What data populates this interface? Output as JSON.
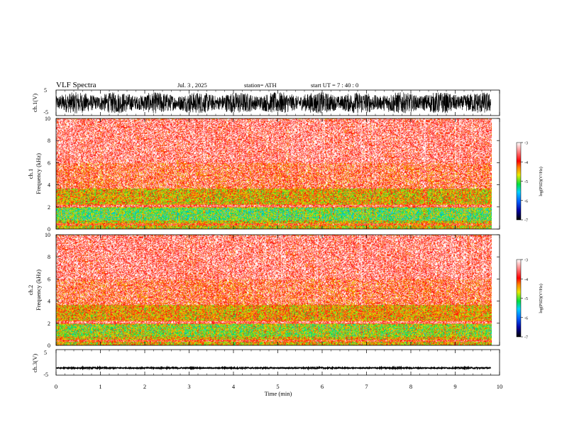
{
  "header": {
    "title": "VLF  Spectra",
    "date": "Jul.  3  , 2025",
    "station": "station= ATH",
    "start": "start  UT  =   7  : 40 : 0"
  },
  "chart_data": [
    {
      "type": "line",
      "panel": "ch1-waveform",
      "ylabel": "ch.1(V)",
      "ylim": [
        -5,
        5
      ],
      "yticks": [
        "5",
        "-5"
      ],
      "x_range_min": [
        0,
        9.8
      ],
      "note_values": "dense noise waveform, amplitude about ±4 V"
    },
    {
      "type": "heatmap",
      "panel": "ch1-spectrogram",
      "ylabel": "ch.1\nFrequency  (kHz)",
      "ylim": [
        0,
        10
      ],
      "yticks": [
        "0",
        "2",
        "4",
        "6",
        "8",
        "10"
      ],
      "x_range_min": [
        0,
        9.8
      ],
      "colorbar": {
        "label": "log(PSD)(V²/Hz)",
        "ticks": [
          "-3",
          "-4",
          "-5",
          "-6",
          "-7"
        ],
        "range": [
          -7,
          -3
        ]
      },
      "bands_khz": [
        {
          "range": [
            0,
            0.8
          ],
          "level": -4.6
        },
        {
          "range": [
            0.8,
            2.0
          ],
          "level": -5.0
        },
        {
          "range": [
            2.0,
            2.3
          ],
          "level": -4.2
        },
        {
          "range": [
            2.3,
            3.7
          ],
          "level": -4.5
        },
        {
          "range": [
            3.7,
            6.0
          ],
          "level": -3.9
        },
        {
          "range": [
            6.0,
            10.0
          ],
          "level": -3.6
        }
      ]
    },
    {
      "type": "heatmap",
      "panel": "ch2-spectrogram",
      "ylabel": "ch.2\nFrequency  (kHz)",
      "ylim": [
        0,
        10
      ],
      "yticks": [
        "0",
        "2",
        "4",
        "6",
        "8",
        "10"
      ],
      "x_range_min": [
        0,
        9.8
      ],
      "colorbar": {
        "label": "log(PSD)(V²/Hz)",
        "ticks": [
          "-3",
          "-4",
          "-5",
          "-6",
          "-7"
        ],
        "range": [
          -7,
          -3
        ]
      },
      "bands_khz": [
        {
          "range": [
            0,
            0.8
          ],
          "level": -4.5
        },
        {
          "range": [
            0.8,
            2.0
          ],
          "level": -4.8
        },
        {
          "range": [
            2.0,
            2.3
          ],
          "level": -4.1
        },
        {
          "range": [
            2.3,
            3.7
          ],
          "level": -4.4
        },
        {
          "range": [
            3.7,
            6.0
          ],
          "level": -3.9
        },
        {
          "range": [
            6.0,
            10.0
          ],
          "level": -3.6
        }
      ]
    },
    {
      "type": "line",
      "panel": "ch3-waveform",
      "ylabel": "ch.3(V)",
      "ylim": [
        -5,
        5
      ],
      "yticks": [
        "5",
        "-5"
      ],
      "x_range_min": [
        0,
        9.8
      ],
      "note_values": "nearly flat trace around -2 V"
    }
  ],
  "xaxis": {
    "label": "Time  (min)",
    "ticks": [
      "0",
      "1",
      "2",
      "3",
      "4",
      "5",
      "6",
      "7",
      "8",
      "9",
      "10"
    ],
    "range": [
      0,
      10
    ]
  }
}
